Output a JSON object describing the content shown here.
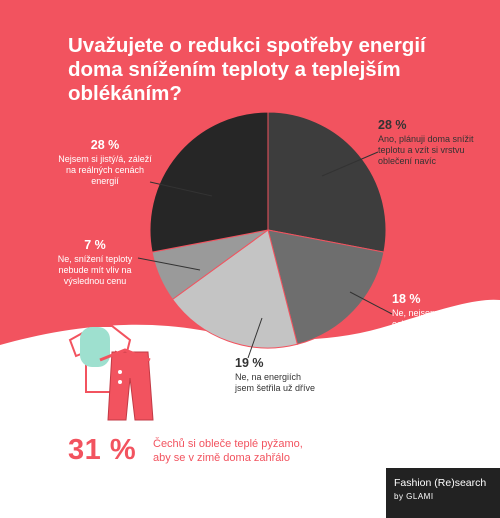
{
  "title": "Uvažujete o redukci spotřeby energií doma snížením teploty a teplejším oblékáním?",
  "chart_data": {
    "type": "pie",
    "slices": [
      {
        "pct": "28 %",
        "value": 28,
        "label": "Ano, plánuji doma snížit teplotu a vzít si vrstvu oblečení navíc",
        "color": "#3d3d3d"
      },
      {
        "pct": "18 %",
        "value": 18,
        "label": "Ne, nejsem ochoten/a dělat kompromisy",
        "color": "#6e6e6e"
      },
      {
        "pct": "19 %",
        "value": 19,
        "label": "Ne, na energiích jsem šetřila už dříve",
        "color": "#c4c4c4"
      },
      {
        "pct": "7 %",
        "value": 7,
        "label": "Ne, snížení teploty nebude mít vliv na výslednou cenu",
        "color": "#9a9a9a"
      },
      {
        "pct": "28 %",
        "value": 28,
        "label": "Nejsem si jistý/á, záleží na reálných cenách energií",
        "color": "#262626"
      }
    ]
  },
  "bottom": {
    "stat": "31 %",
    "text": "Čechů si obleče teplé pyžamo, aby se v zimě doma zahřálo"
  },
  "brand": {
    "line1": "Fashion (Re)search",
    "line2": "by GLAMI"
  },
  "colors": {
    "background": "#f2535f",
    "accent": "#f2535f",
    "white_area": "#ffffff"
  }
}
